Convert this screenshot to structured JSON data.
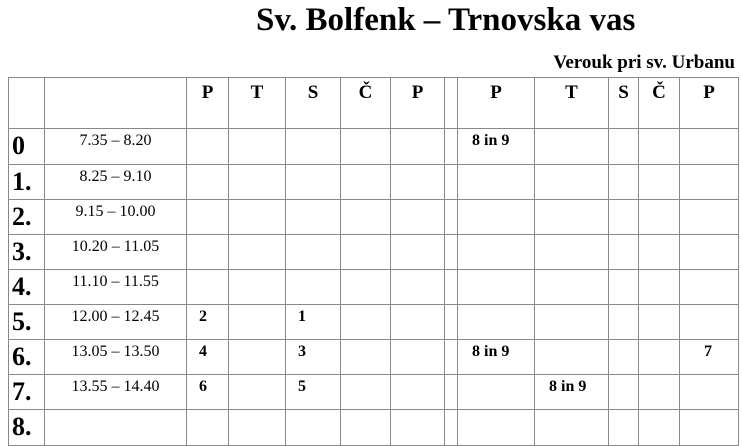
{
  "title": "Sv. Bolfenk – Trnovska vas",
  "subtitle": "Verouk pri sv. Urbanu",
  "headers": [
    "",
    "",
    "P",
    "T",
    "S",
    "Č",
    "P",
    "",
    "P",
    "T",
    "S",
    "Č",
    "P"
  ],
  "rows": [
    {
      "num": "0",
      "time": "7.35 – 8.20",
      "cells": [
        "",
        "",
        "",
        "",
        "",
        "",
        "8 in 9",
        "",
        "",
        "",
        ""
      ]
    },
    {
      "num": "1.",
      "time": "8.25 – 9.10",
      "cells": [
        "",
        "",
        "",
        "",
        "",
        "",
        "",
        "",
        "",
        "",
        ""
      ]
    },
    {
      "num": "2.",
      "time": "9.15 – 10.00",
      "cells": [
        "",
        "",
        "",
        "",
        "",
        "",
        "",
        "",
        "",
        "",
        ""
      ]
    },
    {
      "num": "3.",
      "time": "10.20 – 11.05",
      "cells": [
        "",
        "",
        "",
        "",
        "",
        "",
        "",
        "",
        "",
        "",
        ""
      ]
    },
    {
      "num": "4.",
      "time": "11.10 – 11.55",
      "cells": [
        "",
        "",
        "",
        "",
        "",
        "",
        "",
        "",
        "",
        "",
        ""
      ]
    },
    {
      "num": "5.",
      "time": "12.00 – 12.45",
      "cells": [
        "2",
        "",
        "1",
        "",
        "",
        "",
        "",
        "",
        "",
        "",
        ""
      ]
    },
    {
      "num": "6.",
      "time": "13.05 – 13.50",
      "cells": [
        "4",
        "",
        "3",
        "",
        "",
        "",
        "8 in 9",
        "",
        "",
        "",
        "7"
      ]
    },
    {
      "num": "7.",
      "time": "13.55 – 14.40",
      "cells": [
        "6",
        "",
        "5",
        "",
        "",
        "",
        "",
        "8 in 9",
        "",
        "",
        ""
      ]
    },
    {
      "num": "8.",
      "time": "",
      "cells": [
        "",
        "",
        "",
        "",
        "",
        "",
        "",
        "",
        "",
        "",
        ""
      ]
    }
  ]
}
